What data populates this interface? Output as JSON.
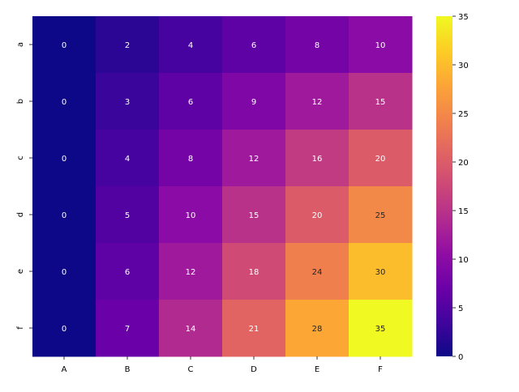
{
  "chart_data": {
    "type": "heatmap",
    "title": "",
    "xlabel": "",
    "ylabel": "",
    "x_categories": [
      "A",
      "B",
      "C",
      "D",
      "E",
      "F"
    ],
    "y_categories": [
      "a",
      "b",
      "c",
      "d",
      "e",
      "f"
    ],
    "values": [
      [
        0,
        2,
        4,
        6,
        8,
        10
      ],
      [
        0,
        3,
        6,
        9,
        12,
        15
      ],
      [
        0,
        4,
        8,
        12,
        16,
        20
      ],
      [
        0,
        5,
        10,
        15,
        20,
        25
      ],
      [
        0,
        6,
        12,
        18,
        24,
        30
      ],
      [
        0,
        7,
        14,
        21,
        28,
        35
      ]
    ],
    "annotations": true,
    "colormap": "plasma",
    "vmin": 0,
    "vmax": 35,
    "colorbar": {
      "ticks": [
        0,
        5,
        10,
        15,
        20,
        25,
        30,
        35
      ],
      "position": "right"
    },
    "grid": false,
    "annotation_colors": {
      "light_text": "#ffffff",
      "dark_text": "#262626"
    }
  }
}
